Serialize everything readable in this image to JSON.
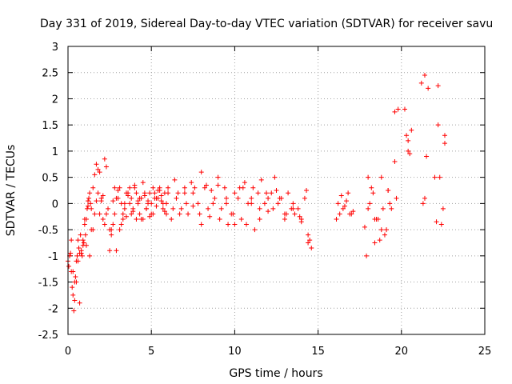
{
  "chart_data": {
    "type": "scatter",
    "title": "Day 331 of 2019, Sidereal Day-to-day VTEC variation (SDTVAR) for receiver savu",
    "xlabel": "GPS time / hours",
    "ylabel": "SDTVAR / TECUs",
    "xlim": [
      0,
      25
    ],
    "ylim": [
      -2.5,
      3
    ],
    "xticks": [
      0,
      5,
      10,
      15,
      20,
      25
    ],
    "xtick_labels": [
      "0",
      "5",
      "10",
      "15",
      "20",
      "25"
    ],
    "yticks": [
      -2.5,
      -2,
      -1.5,
      -1,
      -0.5,
      0,
      0.5,
      1,
      1.5,
      2,
      2.5,
      3
    ],
    "ytick_labels": [
      "-2.5",
      "-2",
      "-1.5",
      "-1",
      "-0.5",
      "0",
      "0.5",
      "1",
      "1.5",
      "2",
      "2.5",
      "3"
    ],
    "grid": true,
    "marker": "+",
    "color": "#ff0000",
    "series": [
      {
        "name": "SDTVAR",
        "x": [
          0.0,
          0.05,
          0.1,
          0.15,
          0.2,
          0.25,
          0.3,
          0.35,
          0.4,
          0.45,
          0.5,
          0.55,
          0.6,
          0.65,
          0.7,
          0.75,
          0.8,
          0.85,
          0.9,
          0.95,
          1.0,
          1.05,
          1.1,
          1.15,
          1.2,
          1.25,
          1.3,
          1.35,
          1.4,
          1.5,
          1.6,
          1.7,
          1.8,
          1.9,
          2.0,
          2.1,
          2.2,
          2.3,
          2.5,
          2.6,
          2.7,
          2.8,
          2.9,
          3.0,
          3.1,
          3.2,
          3.3,
          3.4,
          3.5,
          3.6,
          3.7,
          3.8,
          3.9,
          4.0,
          4.1,
          4.2,
          4.3,
          4.4,
          4.5,
          4.6,
          4.7,
          4.8,
          4.9,
          5.0,
          5.1,
          5.2,
          5.3,
          5.4,
          5.5,
          5.6,
          5.7,
          5.8,
          5.9,
          6.0,
          6.2,
          6.4,
          6.6,
          6.8,
          7.0,
          7.2,
          7.4,
          7.6,
          7.8,
          8.0,
          8.2,
          8.4,
          8.6,
          8.8,
          9.0,
          9.2,
          9.4,
          9.6,
          9.8,
          10.0,
          10.2,
          10.4,
          10.6,
          10.8,
          11.0,
          11.2,
          11.4,
          11.6,
          11.8,
          12.0,
          12.2,
          12.4,
          12.6,
          12.8,
          13.0,
          13.2,
          13.4,
          13.6,
          13.8,
          14.0,
          14.2,
          14.4,
          14.6,
          16.2,
          16.4,
          16.6,
          16.8,
          17.0,
          17.8,
          18.0,
          18.2,
          18.4,
          18.6,
          18.8,
          19.0,
          19.2,
          19.4,
          19.6,
          19.8,
          20.2,
          20.4,
          20.6,
          21.2,
          21.4,
          21.6,
          22.0,
          22.2,
          22.4,
          22.6,
          0.3,
          0.5,
          0.7,
          0.9,
          1.1,
          1.3,
          1.5,
          1.7,
          1.9,
          2.1,
          2.3,
          2.5,
          2.7,
          2.9,
          3.1,
          3.3,
          3.5,
          3.7,
          3.9,
          4.1,
          4.3,
          4.5,
          4.7,
          4.9,
          5.1,
          5.3,
          5.5,
          5.7,
          5.9,
          6.3,
          6.7,
          7.1,
          7.5,
          7.9,
          8.3,
          8.7,
          9.1,
          9.5,
          9.9,
          10.3,
          10.7,
          11.1,
          11.5,
          11.9,
          12.3,
          12.7,
          13.1,
          13.5,
          13.9,
          14.3,
          14.5,
          16.1,
          16.5,
          16.9,
          17.9,
          18.1,
          18.3,
          18.5,
          18.7,
          18.9,
          19.1,
          19.3,
          19.7,
          20.3,
          20.5,
          21.3,
          21.5,
          22.1,
          22.3,
          22.5,
          0.2,
          0.4,
          0.6,
          0.8,
          1.0,
          1.2,
          1.4,
          1.6,
          1.8,
          2.0,
          2.2,
          2.4,
          2.6,
          2.8,
          3.0,
          3.2,
          3.4,
          3.6,
          3.8,
          4.0,
          4.2,
          4.4,
          4.6,
          4.8,
          5.0,
          5.2,
          5.4,
          5.6,
          5.8,
          6.0,
          6.5,
          7.0,
          7.5,
          8.0,
          8.5,
          9.0,
          9.5,
          10.0,
          10.5,
          11.0,
          11.5,
          12.0,
          12.5,
          13.0,
          13.5,
          14.0,
          14.4,
          16.3,
          16.7,
          17.1,
          18.0,
          18.4,
          18.8,
          19.2,
          19.6,
          20.4,
          21.4,
          22.2,
          22.6
        ],
        "y": [
          -1.1,
          -1.2,
          -1.0,
          -0.95,
          -1.3,
          -1.6,
          -1.75,
          -2.05,
          -1.85,
          -1.4,
          -1.1,
          -1.0,
          -0.7,
          -0.85,
          -0.95,
          -0.6,
          -0.9,
          -1.0,
          -0.8,
          -0.75,
          -0.4,
          -0.6,
          -0.3,
          -0.1,
          -0.05,
          0.1,
          0.2,
          0.0,
          -0.1,
          0.3,
          0.55,
          0.75,
          0.65,
          0.6,
          0.05,
          0.15,
          0.85,
          0.7,
          -0.9,
          -0.6,
          -0.4,
          -0.2,
          0.1,
          0.25,
          0.3,
          0.0,
          -0.2,
          -0.1,
          0.2,
          0.15,
          0.3,
          0.1,
          -0.1,
          0.35,
          0.2,
          0.0,
          -0.2,
          0.1,
          0.4,
          0.2,
          -0.1,
          0.05,
          -0.25,
          0.0,
          0.3,
          0.2,
          -0.05,
          0.1,
          0.25,
          0.15,
          -0.1,
          0.2,
          0.0,
          0.3,
          -0.3,
          0.45,
          0.2,
          -0.1,
          0.2,
          -0.2,
          0.4,
          0.3,
          0.0,
          0.6,
          0.3,
          -0.1,
          0.25,
          0.1,
          0.5,
          -0.1,
          0.3,
          -0.4,
          -0.2,
          0.2,
          0.1,
          -0.3,
          0.4,
          0.0,
          0.1,
          -0.5,
          0.2,
          0.45,
          0.0,
          -0.15,
          0.2,
          0.5,
          0.0,
          0.1,
          -0.2,
          0.2,
          -0.1,
          -0.2,
          -0.1,
          -0.3,
          0.1,
          -0.6,
          -0.85,
          0.0,
          0.15,
          -0.05,
          0.2,
          -0.2,
          -0.45,
          -0.1,
          0.3,
          -0.75,
          -0.3,
          0.5,
          -0.6,
          0.25,
          -0.1,
          1.75,
          1.8,
          1.8,
          1.0,
          1.4,
          2.3,
          2.45,
          2.2,
          0.5,
          1.5,
          -0.4,
          1.3,
          -1.3,
          -1.5,
          -1.9,
          -0.7,
          -0.8,
          -1.0,
          -0.5,
          0.05,
          -0.2,
          -0.3,
          -0.2,
          -0.5,
          0.05,
          -0.9,
          -0.5,
          -0.3,
          -0.25,
          0.0,
          -0.15,
          -0.3,
          0.1,
          -0.3,
          -0.1,
          0.2,
          -0.2,
          0.1,
          0.3,
          0.0,
          -0.2,
          -0.1,
          -0.2,
          0.0,
          0.2,
          -0.2,
          0.35,
          0.0,
          -0.3,
          0.1,
          -0.2,
          0.3,
          -0.4,
          0.3,
          -0.1,
          0.2,
          -0.1,
          0.1,
          -0.2,
          0.0,
          -0.25,
          0.25,
          -0.7,
          -0.3,
          -0.1,
          -0.2,
          -1.0,
          0.0,
          0.2,
          -0.3,
          -0.7,
          -0.1,
          -0.5,
          0.0,
          0.1,
          1.3,
          0.95,
          0.0,
          0.9,
          -0.35,
          0.5,
          -0.1,
          -0.7,
          -1.5,
          -1.1,
          -0.95,
          -0.3,
          0.05,
          -0.5,
          -0.2,
          0.2,
          0.1,
          -0.4,
          -0.1,
          -0.5,
          0.3,
          0.1,
          -0.4,
          0.0,
          0.2,
          -0.2,
          0.3,
          0.05,
          -0.3,
          0.15,
          0.0,
          -0.2,
          0.1,
          0.25,
          0.05,
          -0.15,
          0.2,
          0.1,
          0.3,
          -0.05,
          -0.4,
          -0.25,
          0.35,
          0.0,
          -0.4,
          0.3,
          0.0,
          -0.3,
          0.1,
          0.25,
          -0.3,
          -0.1,
          -0.35,
          -0.75,
          -0.2,
          0.05,
          -0.15,
          0.5,
          -0.3,
          -0.5,
          0.25,
          0.8,
          1.2,
          0.1,
          2.25,
          1.15
        ]
      }
    ]
  }
}
